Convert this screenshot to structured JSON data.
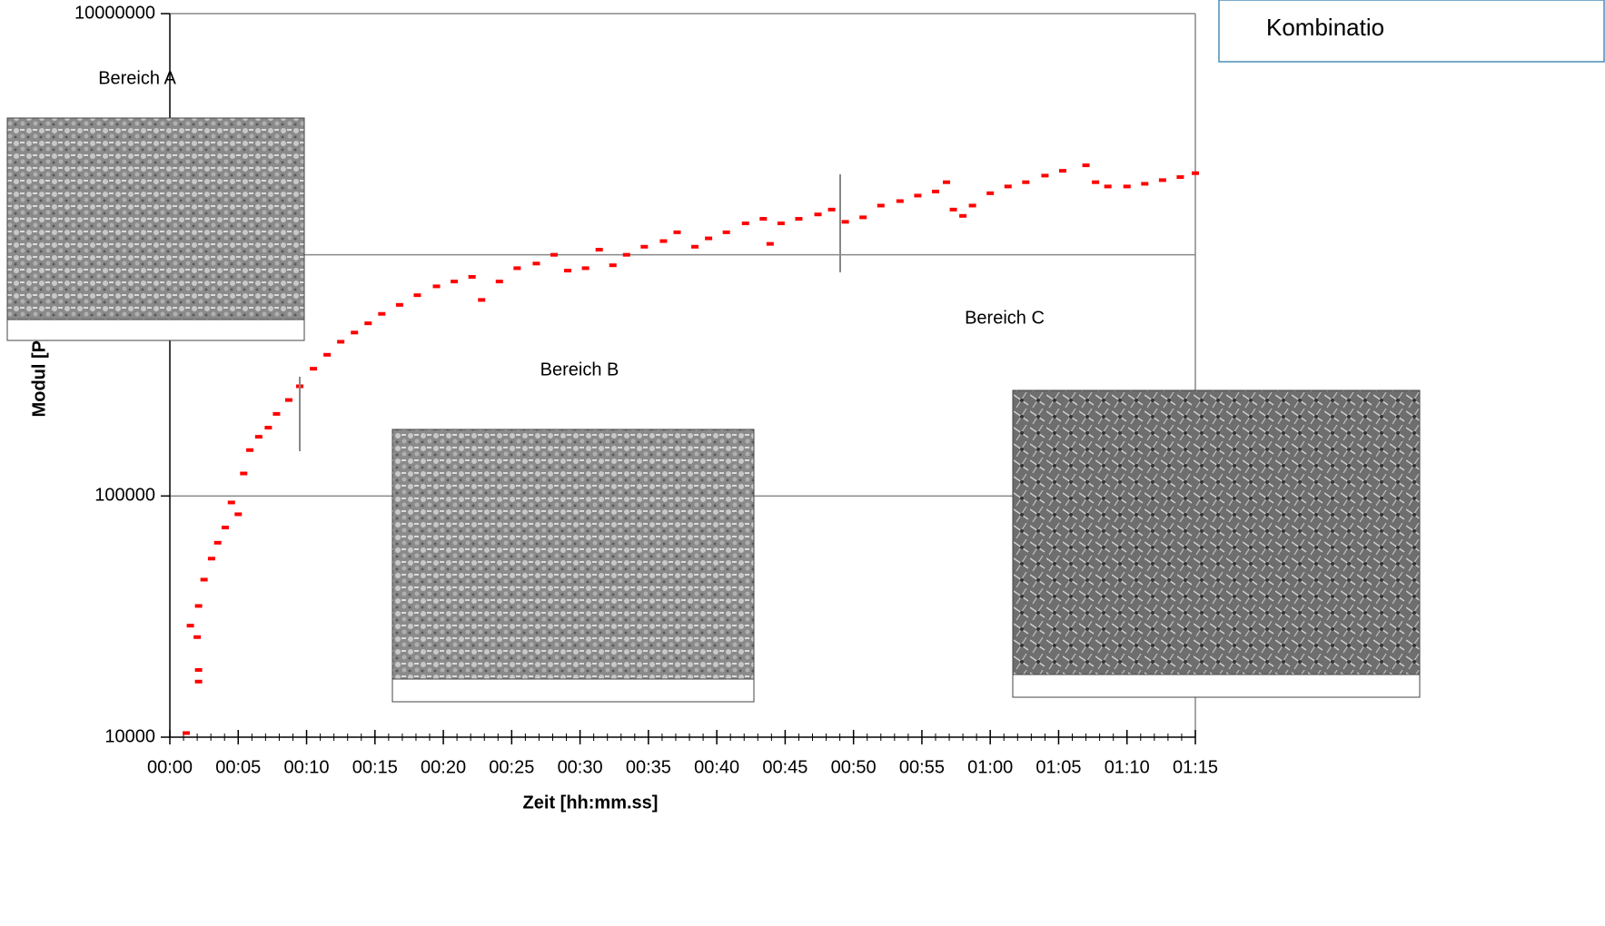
{
  "chart_data": {
    "type": "scatter",
    "x_label": "Zeit [hh:mm.ss]",
    "y_label": "Modul [P",
    "annotations": [
      "Bereich A",
      "Bereich B",
      "Bereich C",
      "Kombinatio"
    ],
    "log_y": true,
    "grid": true,
    "xlim": [
      0,
      75
    ],
    "xticks": [
      {
        "value": 0,
        "label": "00:00"
      },
      {
        "value": 5,
        "label": "00:05"
      },
      {
        "value": 10,
        "label": "00:10"
      },
      {
        "value": 15,
        "label": "00:15"
      },
      {
        "value": 20,
        "label": "00:20"
      },
      {
        "value": 25,
        "label": "00:25"
      },
      {
        "value": 30,
        "label": "00:30"
      },
      {
        "value": 35,
        "label": "00:35"
      },
      {
        "value": 40,
        "label": "00:40"
      },
      {
        "value": 45,
        "label": "00:45"
      },
      {
        "value": 50,
        "label": "00:50"
      },
      {
        "value": 55,
        "label": "00:55"
      },
      {
        "value": 60,
        "label": "01:00"
      },
      {
        "value": 65,
        "label": "01:05"
      },
      {
        "value": 70,
        "label": "01:10"
      },
      {
        "value": 75,
        "label": "01:15"
      }
    ],
    "ylim": [
      10000,
      10000000
    ],
    "yticks": [
      10000,
      100000,
      1000000,
      10000000
    ],
    "series": [
      {
        "name": "Modul",
        "color": "#ff0000",
        "x": [
          1.2,
          1.5,
          2.0,
          2.1,
          2.1,
          2.1,
          2.5,
          3.05,
          3.5,
          4.05,
          4.5,
          5.0,
          5.4,
          5.85,
          6.5,
          7.2,
          7.8,
          8.7,
          9.5,
          10.5,
          11.5,
          12.5,
          13.5,
          14.5,
          15.5,
          16.8,
          18.1,
          19.5,
          20.8,
          22.1,
          22.8,
          24.1,
          25.4,
          26.8,
          28.1,
          29.1,
          30.4,
          31.4,
          32.4,
          33.4,
          34.7,
          36.1,
          37.1,
          38.4,
          39.4,
          40.7,
          42.1,
          43.4,
          43.9,
          44.7,
          46.0,
          47.4,
          48.4,
          49.4,
          50.7,
          52.0,
          53.4,
          54.7,
          56.0,
          56.8,
          57.3,
          58.0,
          58.7,
          60.0,
          61.3,
          62.6,
          64.0,
          65.3,
          67.0,
          67.7,
          68.6,
          70.0,
          71.3,
          72.6,
          73.9,
          75.0
        ],
        "values": [
          10400,
          29000,
          26000,
          35000,
          19000,
          17000,
          45000,
          55000,
          64000,
          74000,
          94000,
          84000,
          124000,
          155000,
          176000,
          192000,
          219000,
          250000,
          285000,
          337000,
          385000,
          436000,
          476000,
          520000,
          569000,
          620000,
          680000,
          740000,
          775000,
          810000,
          650000,
          775000,
          880000,
          920000,
          1000000,
          860000,
          880000,
          1050000,
          905000,
          1000000,
          1080000,
          1140000,
          1240000,
          1080000,
          1170000,
          1240000,
          1350000,
          1410000,
          1110000,
          1350000,
          1410000,
          1470000,
          1540000,
          1370000,
          1430000,
          1600000,
          1670000,
          1760000,
          1830000,
          2000000,
          1540000,
          1450000,
          1600000,
          1800000,
          1920000,
          2000000,
          2130000,
          2230000,
          2350000,
          2000000,
          1920000,
          1920000,
          1970000,
          2040000,
          2100000,
          2180000
        ]
      }
    ]
  }
}
